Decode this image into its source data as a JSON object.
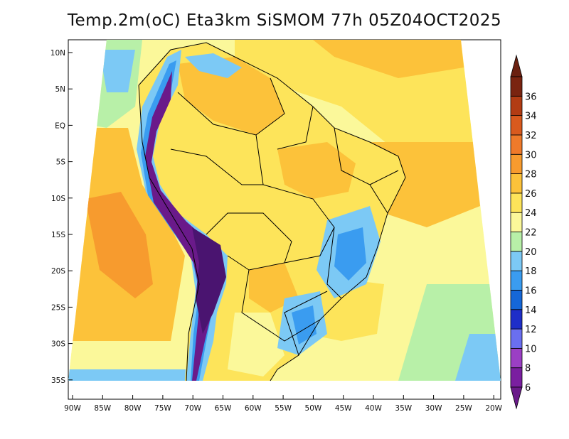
{
  "title": "Temp.2m(oC) Eta3km SiSMOM 77h 05Z04OCT2025",
  "lat_labels": [
    "10N",
    "5N",
    "EQ",
    "5S",
    "10S",
    "15S",
    "20S",
    "25S",
    "30S",
    "35S"
  ],
  "lon_labels": [
    "90W",
    "85W",
    "80W",
    "75W",
    "70W",
    "65W",
    "60W",
    "55W",
    "50W",
    "45W",
    "40W",
    "35W",
    "30W",
    "25W",
    "20W"
  ],
  "colorbar": {
    "levels": [
      "6",
      "8",
      "10",
      "12",
      "14",
      "16",
      "18",
      "20",
      "22",
      "24",
      "26",
      "28",
      "30",
      "32",
      "34",
      "36"
    ],
    "colors": [
      "#7a1fa0",
      "#9b3fc4",
      "#6a6ff0",
      "#1e2ec8",
      "#1567d8",
      "#3a9cf0",
      "#7cc9f5",
      "#b8f0a8",
      "#fbf89a",
      "#fde45a",
      "#fcc23a",
      "#f79b2e",
      "#ef7a2a",
      "#d95a1e",
      "#b23c14",
      "#7a2410"
    ],
    "below_color": "#6a1a8a",
    "above_color": "#6a2010"
  },
  "colors": {
    "ocean_pacific": "#fcc23a",
    "ocean_atlantic_north": "#fde45a",
    "ocean_atlantic_south": "#fbf89a",
    "land_warm": "#fde45a",
    "andes_cold": "#6a1a8a",
    "border": "#000000"
  }
}
